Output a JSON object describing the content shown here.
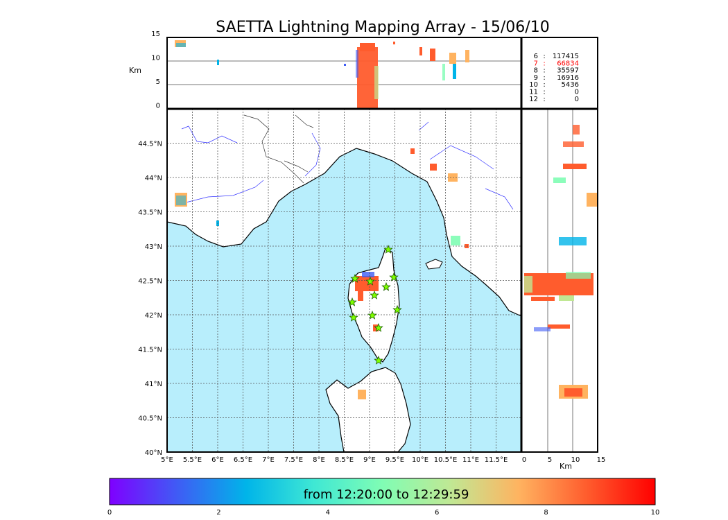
{
  "title": "SAETTA Lightning Mapping Array - 15/06/10",
  "colorbar": {
    "caption": "from 12:20:00 to 12:29:59",
    "ticks": [
      "0",
      "2",
      "4",
      "6",
      "8",
      "10"
    ],
    "colors": [
      "#7f00ff",
      "#3f5cf5",
      "#00b4e9",
      "#3fe8d4",
      "#80fdb4",
      "#c0e894",
      "#ffb360",
      "#ff5c2d",
      "#ff0000"
    ]
  },
  "altitude_axis": {
    "label": "Km",
    "ticks": [
      "15",
      "10",
      "5",
      "0"
    ]
  },
  "side_axis": {
    "label": "Km",
    "ticks": [
      "0",
      "5",
      "10",
      "15"
    ]
  },
  "longitude_ticks": [
    "5°E",
    "5.5°E",
    "6°E",
    "6.5°E",
    "7°E",
    "7.5°E",
    "8°E",
    "8.5°E",
    "9°E",
    "9.5°E",
    "10°E",
    "10.5°E",
    "11°E",
    "11.5°E"
  ],
  "latitude_ticks": [
    "44.5°N",
    "44°N",
    "43.5°N",
    "43°N",
    "42.5°N",
    "42°N",
    "41.5°N",
    "41°N",
    "40.5°N",
    "40°N"
  ],
  "station_stats": [
    {
      "stations": "6",
      "sep": ":",
      "count": "117415",
      "highlight": false
    },
    {
      "stations": "7",
      "sep": ":",
      "count": "66834",
      "highlight": true
    },
    {
      "stations": "8",
      "sep": ":",
      "count": "35597",
      "highlight": false
    },
    {
      "stations": "9",
      "sep": ":",
      "count": "16916",
      "highlight": false
    },
    {
      "stations": "10",
      "sep": ":",
      "count": "5436",
      "highlight": false
    },
    {
      "stations": "11",
      "sep": ":",
      "count": "0",
      "highlight": false
    },
    {
      "stations": "12",
      "sep": ":",
      "count": "0",
      "highlight": false
    }
  ],
  "style": {
    "sea_color": "#b8eefc",
    "land_color": "#ffffff",
    "river_color": "#3333ff",
    "station_marker_color": "#7fff00",
    "highlight_color": "#ff0000"
  }
}
